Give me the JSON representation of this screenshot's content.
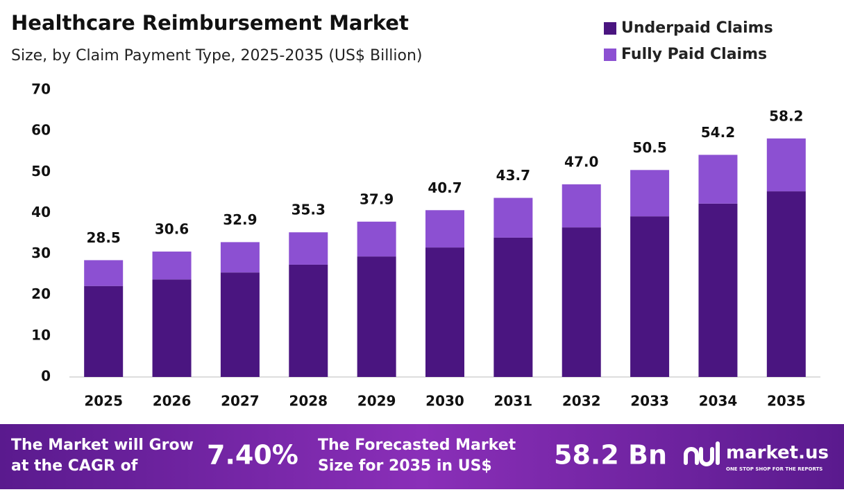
{
  "chart_data": {
    "type": "stacked-bar",
    "title": "Healthcare Reimbursement Market",
    "subtitle": "Size, by Claim Payment Type, 2025-2035 (US$ Billion)",
    "categories": [
      "2025",
      "2026",
      "2027",
      "2028",
      "2029",
      "2030",
      "2031",
      "2032",
      "2033",
      "2034",
      "2035"
    ],
    "series": [
      {
        "name": "Underpaid Claims",
        "color": "#4a1580",
        "values": [
          22.2,
          23.8,
          25.5,
          27.4,
          29.4,
          31.6,
          34.0,
          36.5,
          39.2,
          42.3,
          45.3
        ]
      },
      {
        "name": "Fully Paid Claims",
        "color": "#8c50d2",
        "values": [
          6.3,
          6.8,
          7.4,
          7.9,
          8.5,
          9.1,
          9.7,
          10.5,
          11.3,
          11.9,
          12.9
        ]
      }
    ],
    "totals": {
      "values": [
        28.5,
        30.6,
        32.9,
        35.3,
        37.9,
        40.7,
        43.7,
        47.0,
        50.5,
        54.2,
        58.2
      ],
      "value_labels": [
        "28.5",
        "30.6",
        "32.9",
        "35.3",
        "37.9",
        "40.7",
        "43.7",
        "47.0",
        "50.5",
        "54.2",
        "58.2"
      ]
    },
    "ylim": [
      0,
      70
    ],
    "yticks": [
      0,
      10,
      20,
      30,
      40,
      50,
      60,
      70
    ],
    "grid": false,
    "legend": "top-right"
  },
  "footer": {
    "cagr_text": [
      "The Market will Grow",
      "at the CAGR of"
    ],
    "cagr_value": "7.40%",
    "forecast_text": [
      "The Forecasted Market",
      "Size for 2035 in US$"
    ],
    "forecast_value": "58.2 Bn",
    "brand": "market.us",
    "tagline": "ONE STOP SHOP FOR THE REPORTS"
  }
}
